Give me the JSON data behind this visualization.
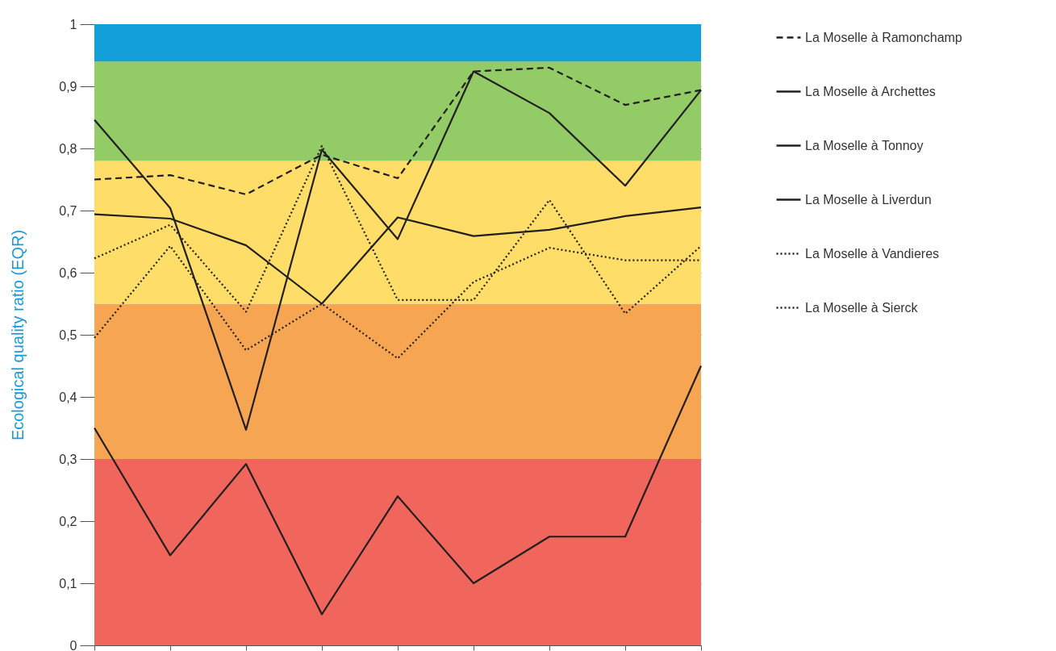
{
  "chart_data": {
    "type": "line",
    "ylabel": "Ecological quality ratio (EQR)",
    "categories": [
      null,
      null,
      null,
      null,
      null,
      null,
      null,
      null,
      null
    ],
    "series": [
      {
        "name": "La Moselle à Ramonchamp",
        "color": "#231f20",
        "line_style": "dashed",
        "values": [
          0.75,
          0.757,
          0.726,
          0.79,
          0.752,
          0.924,
          0.93,
          0.87,
          0.894
        ]
      },
      {
        "name": "La Moselle à Archettes",
        "color": "#231f20",
        "line_style": "solid",
        "values": [
          0.846,
          0.704,
          0.347,
          0.798,
          0.654,
          0.924,
          0.857,
          0.74,
          0.894
        ]
      },
      {
        "name": "La Moselle à Tonnoy",
        "color": "#231f20",
        "line_style": "solid",
        "values": [
          0.35,
          0.145,
          0.292,
          0.05,
          0.24,
          0.1,
          0.175,
          0.175,
          0.45
        ]
      },
      {
        "name": "La Moselle à Liverdun",
        "color": "#231f20",
        "line_style": "solid",
        "values": [
          0.694,
          0.687,
          0.644,
          0.55,
          0.689,
          0.659,
          0.669,
          0.691,
          0.705
        ]
      },
      {
        "name": "La Moselle à Vandieres",
        "color": "#231f20",
        "line_style": "dotted",
        "values": [
          0.623,
          0.677,
          0.537,
          0.804,
          0.556,
          0.556,
          0.717,
          0.534,
          0.643
        ]
      },
      {
        "name": "La Moselle à Sierck",
        "color": "#231f20",
        "line_style": "dotted",
        "values": [
          0.495,
          0.643,
          0.475,
          0.55,
          0.462,
          0.585,
          0.64,
          0.62,
          0.62
        ]
      }
    ],
    "ylim": [
      0,
      1
    ],
    "yticks": [
      0,
      {
        "value": 0.1,
        "label": "0,1"
      },
      {
        "value": 0.2,
        "label": "0,2"
      },
      {
        "value": 0.3,
        "label": "0,3"
      },
      {
        "value": 0.4,
        "label": "0,4"
      },
      {
        "value": 0.5,
        "label": "0,5"
      },
      {
        "value": 0.6,
        "label": "0,6"
      },
      {
        "value": 0.7,
        "label": "0,7"
      },
      {
        "value": 0.8,
        "label": "0,8"
      },
      {
        "value": 0.9,
        "label": "0,9"
      },
      1
    ],
    "bands": [
      {
        "axis": "y",
        "from": 0,
        "to": 0.3,
        "color": "#f0665c"
      },
      {
        "axis": "y",
        "from": 0.3,
        "to": 0.55,
        "color": "#f6a552"
      },
      {
        "axis": "y",
        "from": 0.55,
        "to": 0.78,
        "color": "#fedd68"
      },
      {
        "axis": "y",
        "from": 0.78,
        "to": 0.94,
        "color": "#93cb67"
      },
      {
        "axis": "y",
        "from": 0.94,
        "to": 1,
        "color": "#139fd8"
      }
    ],
    "grid": "y",
    "legend": "right",
    "tick_labels": "y"
  }
}
